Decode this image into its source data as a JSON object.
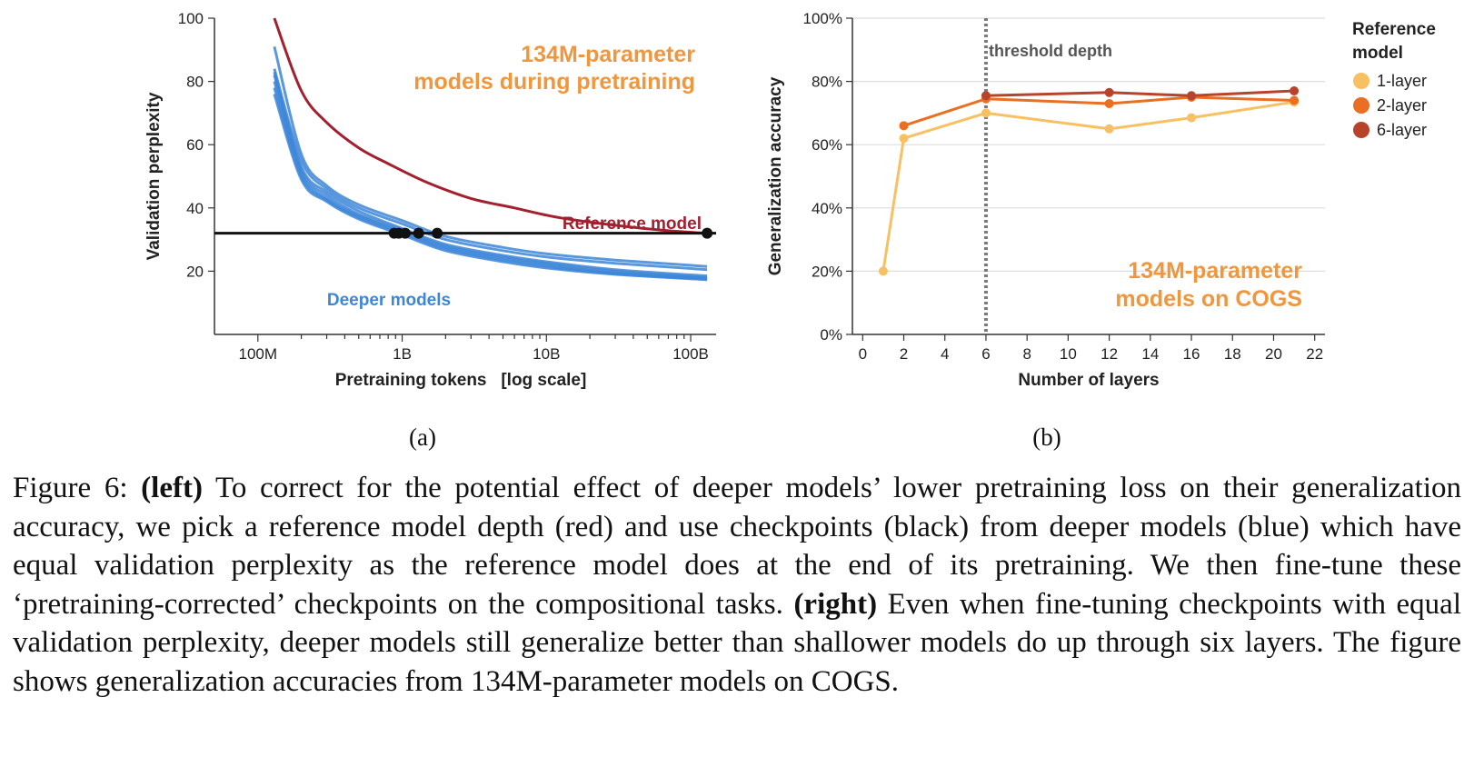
{
  "colors": {
    "reference": "#a3202f",
    "deeper": "#3d86d8",
    "checkpoint": "#111111",
    "annotation_orange": "#f0963c",
    "layer1": "#f6c063",
    "layer2": "#ea6f23",
    "layer6": "#b8432a",
    "threshold": "#7a7a7a",
    "grid": "#dedede"
  },
  "left_panel": {
    "sublabel": "(a)",
    "annotation_line1": "134M-parameter",
    "annotation_line2": "models during pretraining",
    "reference_label": "Reference model",
    "deeper_label": "Deeper models"
  },
  "right_panel": {
    "sublabel": "(b)",
    "threshold_label": "threshold depth",
    "annotation_line1": "134M-parameter",
    "annotation_line2": "models on COGS",
    "legend_title_line1": "Reference",
    "legend_title_line2": "model",
    "legend": [
      "1-layer",
      "2-layer",
      "6-layer"
    ]
  },
  "chart_data": [
    {
      "type": "line",
      "title": "",
      "xlabel": "Pretraining tokens   [log scale]",
      "ylabel": "Validation perplexity",
      "x_scale": "log",
      "xlim": [
        50000000,
        150000000000
      ],
      "ylim": [
        0,
        100
      ],
      "x_ticks": [
        100000000,
        1000000000,
        10000000000,
        100000000000
      ],
      "x_tick_labels": [
        "100M",
        "1B",
        "10B",
        "100B"
      ],
      "y_ticks": [
        20,
        40,
        60,
        80,
        100
      ],
      "y_tick_labels": [
        "20",
        "40",
        "60",
        "80",
        "100"
      ],
      "threshold_perplexity": 32,
      "reference_series": {
        "name": "Reference model",
        "x": [
          130000000,
          200000000,
          300000000,
          500000000,
          800000000,
          1500000000,
          3000000000,
          6000000000,
          12000000000,
          30000000000,
          70000000000,
          130000000000
        ],
        "y": [
          100,
          77,
          67,
          59,
          54,
          48,
          43,
          40,
          37,
          34.5,
          32.8,
          32
        ]
      },
      "deeper_series": [
        {
          "name": "deeper-1",
          "x": [
            130000000,
            200000000,
            300000000,
            500000000,
            1000000000,
            2000000000,
            5000000000,
            10000000000,
            30000000000,
            130000000000
          ],
          "y": [
            91,
            57,
            47,
            41,
            36,
            31,
            27.5,
            25.5,
            23.5,
            21.5
          ]
        },
        {
          "name": "deeper-2",
          "x": [
            130000000,
            200000000,
            300000000,
            500000000,
            1000000000,
            2000000000,
            5000000000,
            10000000000,
            30000000000,
            130000000000
          ],
          "y": [
            84,
            55,
            46,
            40,
            35,
            30,
            26.5,
            24.5,
            22.5,
            20.5
          ]
        },
        {
          "name": "deeper-3",
          "x": [
            130000000,
            200000000,
            300000000,
            500000000,
            1000000000,
            2000000000,
            5000000000,
            10000000000,
            30000000000,
            130000000000
          ],
          "y": [
            83,
            53,
            45,
            39,
            33.5,
            28.5,
            25,
            23,
            20.5,
            18.5
          ]
        },
        {
          "name": "deeper-4",
          "x": [
            130000000,
            200000000,
            300000000,
            500000000,
            1000000000,
            2000000000,
            5000000000,
            10000000000,
            30000000000,
            130000000000
          ],
          "y": [
            82,
            52,
            44,
            38,
            33,
            28,
            24.5,
            22.5,
            20,
            18
          ]
        },
        {
          "name": "deeper-5",
          "x": [
            130000000,
            200000000,
            300000000,
            500000000,
            1000000000,
            2000000000,
            5000000000,
            10000000000,
            30000000000,
            130000000000
          ],
          "y": [
            80,
            51,
            43,
            37.5,
            32.5,
            27.5,
            24,
            22,
            19.5,
            17.8
          ]
        },
        {
          "name": "deeper-6",
          "x": [
            130000000,
            200000000,
            300000000,
            500000000,
            1000000000,
            2000000000,
            5000000000,
            10000000000,
            30000000000,
            130000000000
          ],
          "y": [
            78,
            50,
            42.5,
            37,
            32,
            27,
            23.5,
            21.5,
            19.2,
            17.5
          ]
        },
        {
          "name": "deeper-7",
          "x": [
            130000000,
            200000000,
            300000000,
            500000000,
            1000000000,
            2000000000,
            5000000000,
            10000000000,
            30000000000,
            130000000000
          ],
          "y": [
            76,
            49,
            42,
            36.5,
            31.5,
            26.5,
            23,
            21,
            19,
            17.3
          ]
        }
      ],
      "checkpoints": {
        "x": [
          880000000,
          950000000,
          1050000000,
          1300000000,
          1750000000,
          130000000000
        ],
        "y": [
          32,
          32,
          32,
          32,
          32,
          32
        ]
      }
    },
    {
      "type": "line",
      "title": "",
      "xlabel": "Number of layers",
      "ylabel": "Generalization accuracy",
      "xlim": [
        -0.5,
        22.5
      ],
      "ylim": [
        0,
        100
      ],
      "x_ticks": [
        0,
        2,
        4,
        6,
        8,
        10,
        12,
        14,
        16,
        18,
        20,
        22
      ],
      "x_tick_labels": [
        "0",
        "2",
        "4",
        "6",
        "8",
        "10",
        "12",
        "14",
        "16",
        "18",
        "20",
        "22"
      ],
      "y_ticks": [
        0,
        20,
        40,
        60,
        80,
        100
      ],
      "y_tick_labels": [
        "0%",
        "20%",
        "40%",
        "60%",
        "80%",
        "100%"
      ],
      "grid": true,
      "threshold_x": 6,
      "series": [
        {
          "name": "1-layer",
          "x": [
            1,
            2,
            6,
            12,
            16,
            21
          ],
          "y": [
            20,
            62,
            70,
            65,
            68.5,
            73.5
          ]
        },
        {
          "name": "2-layer",
          "x": [
            2,
            6,
            12,
            16,
            21
          ],
          "y": [
            66,
            74.5,
            73,
            75,
            74
          ]
        },
        {
          "name": "6-layer",
          "x": [
            6,
            12,
            16,
            21
          ],
          "y": [
            75.5,
            76.5,
            75.5,
            77
          ]
        }
      ]
    }
  ],
  "caption": {
    "prefix": "Figure 6: ",
    "left_label": "(left)",
    "left_text": " To correct for the potential effect of deeper models’ lower pretraining loss on their generalization accuracy, we pick a reference model depth (red) and use checkpoints (black) from deeper models (blue) which have equal validation perplexity as the reference model does at the end of its pretraining. We then fine-tune these ‘pretraining-corrected’ checkpoints on the compositional tasks. ",
    "right_label": "(right)",
    "right_text": " Even when fine-tuning checkpoints with equal validation perplexity, deeper models still generalize better than shallower models do up through six layers. The figure shows generalization accuracies from 134M-parameter models on COGS."
  }
}
